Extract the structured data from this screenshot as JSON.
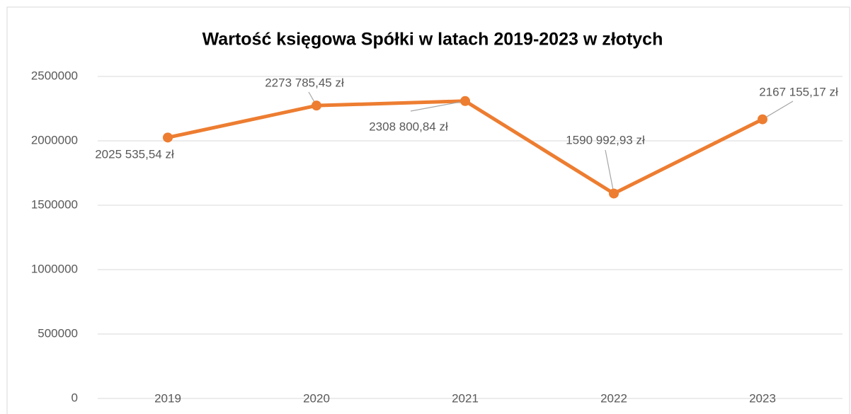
{
  "chart_data": {
    "type": "line",
    "title": "Wartość księgowa Spółki w latach 2019-2023 w złotych",
    "categories": [
      "2019",
      "2020",
      "2021",
      "2022",
      "2023"
    ],
    "series": [
      {
        "name": "Wartość księgowa",
        "color": "#ed7d31",
        "values": [
          2025535.54,
          2273785.45,
          2308800.84,
          1590992.93,
          2167155.17
        ],
        "value_labels": [
          "2025 535,54 zł",
          "2273 785,45 zł",
          "2308 800,84 zł",
          "1590 992,93 zł",
          "2167 155,17 zł"
        ]
      }
    ],
    "ylim": [
      0,
      2500000
    ],
    "yticks": [
      0,
      500000,
      1000000,
      1500000,
      2000000,
      2500000
    ],
    "grid": true
  }
}
